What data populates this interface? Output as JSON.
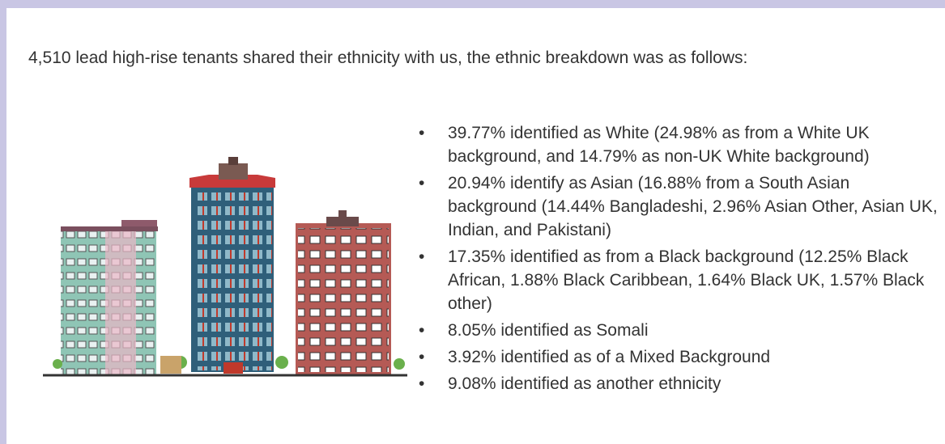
{
  "intro": "4,510 lead high-rise tenants shared their ethnicity with us, the ethnic breakdown was as follows:",
  "bullets": [
    "39.77% identified as White (24.98% as from a White UK background, and 14.79% as non-UK White background)",
    "20.94% identify as Asian (16.88% from a South Asian background (14.44% Bangladeshi, 2.96% Asian Other, Asian UK, Indian, and Pakistani)",
    "17.35% identified as from a Black background (12.25% Black African, 1.88% Black Caribbean, 1.64% Black UK, 1.57% Black other)",
    "8.05% identified as Somali",
    "3.92% identified as of a Mixed Background",
    "9.08% identified as another ethnicity"
  ]
}
